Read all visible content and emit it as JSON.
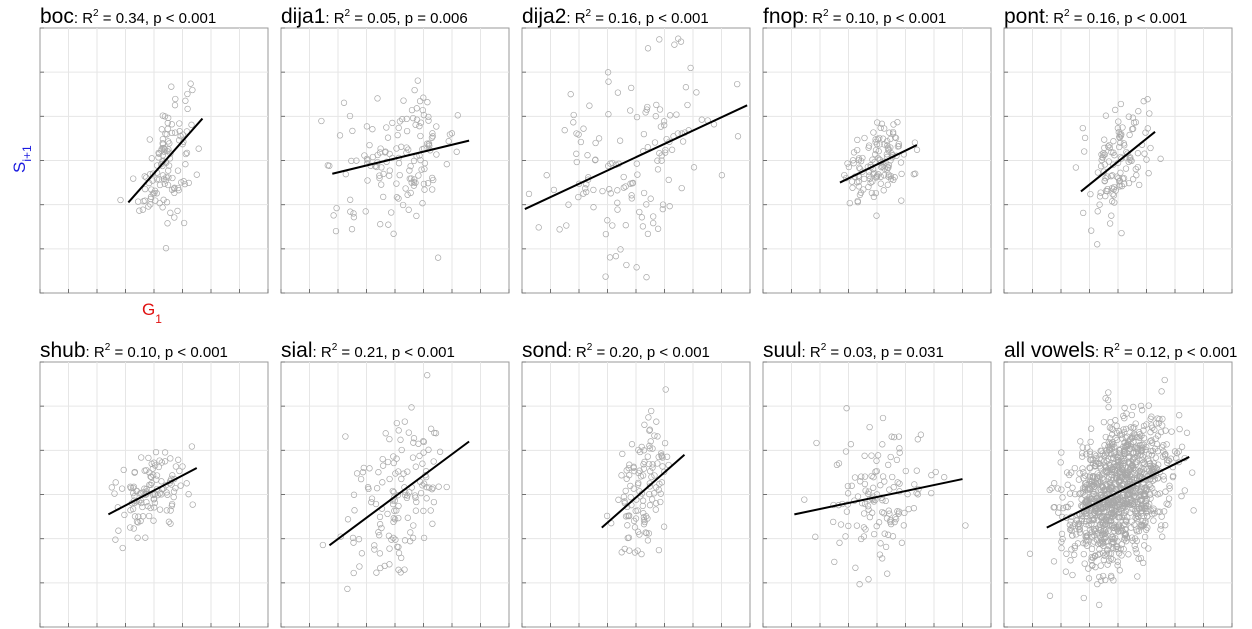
{
  "colors": {
    "ylabel": "#1a1adf",
    "xlabel": "#e01010",
    "points": "#a8a8a8",
    "fit": "#000000"
  },
  "axis_labels": {
    "y_main": "S",
    "y_sub": "i+1",
    "x_main": "G",
    "x_sub": "1"
  },
  "chart_data": [
    {
      "type": "scatter",
      "name": "boc",
      "r2": "0.34",
      "p": "p < 0.001",
      "n_points": 120,
      "spread_x": 0.45,
      "spread_y": 0.7,
      "fit": {
        "x0": -0.9,
        "y0": -0.95,
        "x1": 1.7,
        "y1": 0.95
      }
    },
    {
      "type": "scatter",
      "name": "dija1",
      "r2": "0.05",
      "p": "p = 0.006",
      "n_points": 140,
      "spread_x": 1.05,
      "spread_y": 0.7,
      "fit": {
        "x0": -2.2,
        "y0": -0.3,
        "x1": 2.6,
        "y1": 0.45
      }
    },
    {
      "type": "scatter",
      "name": "dija2",
      "r2": "0.16",
      "p": "p < 0.001",
      "n_points": 140,
      "spread_x": 1.6,
      "spread_y": 1.15,
      "fit": {
        "x0": -3.9,
        "y0": -1.1,
        "x1": 3.9,
        "y1": 1.25
      }
    },
    {
      "type": "scatter",
      "name": "fnop",
      "r2": "0.10",
      "p": "p < 0.001",
      "n_points": 130,
      "spread_x": 0.55,
      "spread_y": 0.45,
      "fit": {
        "x0": -1.3,
        "y0": -0.5,
        "x1": 1.4,
        "y1": 0.35
      }
    },
    {
      "type": "scatter",
      "name": "pont",
      "r2": "0.16",
      "p": "p < 0.001",
      "n_points": 120,
      "spread_x": 0.55,
      "spread_y": 0.6,
      "fit": {
        "x0": -1.3,
        "y0": -0.7,
        "x1": 1.3,
        "y1": 0.65
      }
    },
    {
      "type": "scatter",
      "name": "shub",
      "r2": "0.10",
      "p": "p < 0.001",
      "n_points": 120,
      "spread_x": 0.6,
      "spread_y": 0.5,
      "fit": {
        "x0": -1.6,
        "y0": -0.45,
        "x1": 1.5,
        "y1": 0.6
      }
    },
    {
      "type": "scatter",
      "name": "sial",
      "r2": "0.21",
      "p": "p < 0.001",
      "n_points": 140,
      "spread_x": 0.95,
      "spread_y": 0.95,
      "fit": {
        "x0": -2.3,
        "y0": -1.15,
        "x1": 2.6,
        "y1": 1.2
      }
    },
    {
      "type": "scatter",
      "name": "sond",
      "r2": "0.20",
      "p": "p < 0.001",
      "n_points": 120,
      "spread_x": 0.5,
      "spread_y": 0.75,
      "fit": {
        "x0": -1.2,
        "y0": -0.75,
        "x1": 1.7,
        "y1": 0.9
      }
    },
    {
      "type": "scatter",
      "name": "suul",
      "r2": "0.03",
      "p": "p = 0.031",
      "n_points": 130,
      "spread_x": 0.9,
      "spread_y": 0.75,
      "fit": {
        "x0": -2.9,
        "y0": -0.45,
        "x1": 3.0,
        "y1": 0.35
      }
    },
    {
      "type": "scatter",
      "name": "all vowels",
      "r2": "0.12",
      "p": "p < 0.001",
      "n_points": 1100,
      "spread_x": 0.85,
      "spread_y": 0.75,
      "fit": {
        "x0": -2.5,
        "y0": -0.75,
        "x1": 2.5,
        "y1": 0.85
      }
    }
  ],
  "axes": {
    "xlim": [
      -4,
      4
    ],
    "ylim": [
      -3,
      3
    ],
    "grid": true
  }
}
